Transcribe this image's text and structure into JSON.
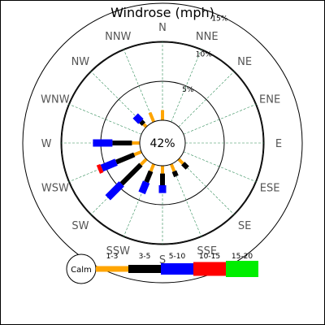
{
  "chart_data": {
    "type": "windrose",
    "title": "Windrose (mph)",
    "calm_label": "42%",
    "calm_legend_label": "Calm",
    "directions": [
      "N",
      "NNE",
      "NE",
      "ENE",
      "E",
      "ESE",
      "SE",
      "SSE",
      "S",
      "SSW",
      "SW",
      "WSW",
      "W",
      "WNW",
      "NW",
      "NNW"
    ],
    "radial_ticks": [
      {
        "value": 5,
        "label": "5%"
      },
      {
        "value": 10,
        "label": "10%"
      },
      {
        "value": 15,
        "label": "15%"
      }
    ],
    "bins": [
      {
        "label": "1-3",
        "color": "#ffa500"
      },
      {
        "label": "3-5",
        "color": "#000000"
      },
      {
        "label": "5-10",
        "color": "#0000ff"
      },
      {
        "label": "10-15",
        "color": "#ff0000"
      },
      {
        "label": "15-20",
        "color": "#00ee00"
      }
    ],
    "series": [
      {
        "direction": "N",
        "values": [
          1.3,
          0,
          0,
          0,
          0
        ]
      },
      {
        "direction": "NNE",
        "values": [
          0,
          0,
          0,
          0,
          0
        ]
      },
      {
        "direction": "NE",
        "values": [
          0,
          0,
          0,
          0,
          0
        ]
      },
      {
        "direction": "ENE",
        "values": [
          0,
          0,
          0,
          0,
          0
        ]
      },
      {
        "direction": "E",
        "values": [
          0,
          0,
          0,
          0,
          0
        ]
      },
      {
        "direction": "ESE",
        "values": [
          0,
          0,
          0,
          0,
          0
        ]
      },
      {
        "direction": "SE",
        "values": [
          0.8,
          0.8,
          0,
          0,
          0
        ]
      },
      {
        "direction": "SSE",
        "values": [
          1.0,
          0.7,
          0,
          0,
          0
        ]
      },
      {
        "direction": "S",
        "values": [
          1.0,
          1.5,
          1.0,
          0,
          0
        ]
      },
      {
        "direction": "SSW",
        "values": [
          1.0,
          1.5,
          1.5,
          0,
          0
        ]
      },
      {
        "direction": "SW",
        "values": [
          1.0,
          3.5,
          2.5,
          0,
          0
        ]
      },
      {
        "direction": "WSW",
        "values": [
          1.0,
          2.5,
          2.0,
          0.5,
          0
        ]
      },
      {
        "direction": "W",
        "values": [
          1.0,
          2.5,
          2.5,
          0,
          0
        ]
      },
      {
        "direction": "WNW",
        "values": [
          0,
          0,
          0,
          0,
          0
        ]
      },
      {
        "direction": "NW",
        "values": [
          0.5,
          0.5,
          1.0,
          0,
          0
        ]
      },
      {
        "direction": "NNW",
        "values": [
          1.3,
          0,
          0,
          0,
          0
        ]
      }
    ],
    "grid": true
  }
}
